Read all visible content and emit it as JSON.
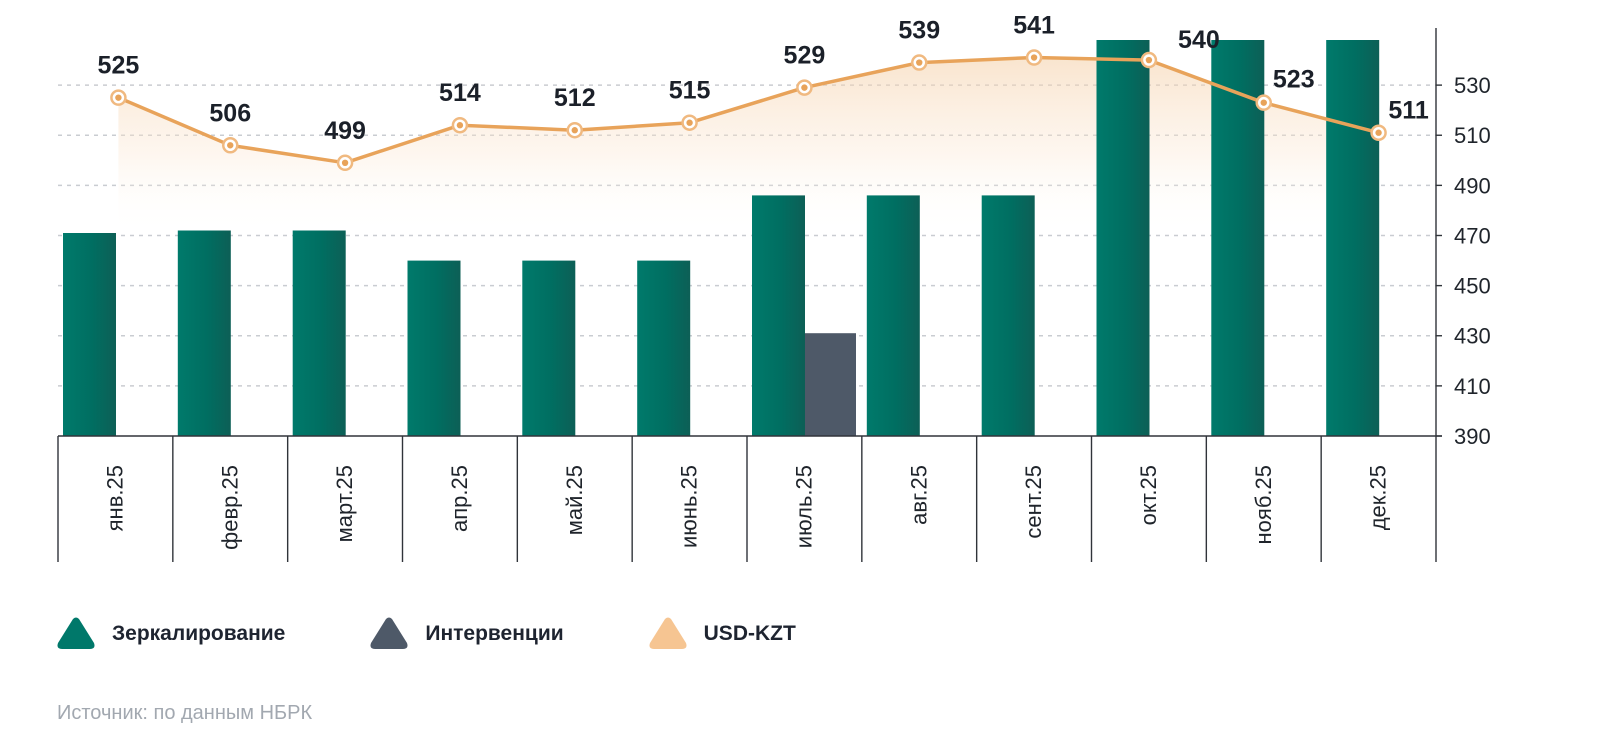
{
  "chart_data": {
    "type": "bar",
    "title": "",
    "categories": [
      "янв.25",
      "февр.25",
      "март.25",
      "апр.25",
      "май.25",
      "июнь.25",
      "июль.25",
      "авг.25",
      "сент.25",
      "окт.25",
      "нояб.25",
      "дек.25"
    ],
    "series": [
      {
        "name": "Зеркалирование",
        "kind": "bar",
        "color": "#00786a",
        "values": [
          471,
          472,
          472,
          460,
          460,
          460,
          486,
          486,
          486,
          548,
          548,
          548
        ]
      },
      {
        "name": "Интервенции",
        "kind": "bar",
        "color": "#4e5968",
        "values": [
          null,
          null,
          null,
          null,
          null,
          null,
          431,
          null,
          null,
          null,
          null,
          null
        ]
      },
      {
        "name": "USD-KZT",
        "kind": "line",
        "color": "#e8a35a",
        "values": [
          525,
          506,
          499,
          514,
          512,
          515,
          529,
          539,
          541,
          540,
          523,
          511
        ]
      }
    ],
    "y_axis": {
      "ticks": [
        390,
        410,
        430,
        450,
        470,
        490,
        510,
        530
      ],
      "ylim": [
        390,
        548
      ],
      "position": "right"
    },
    "grid": true,
    "legend_position": "bottom-left"
  },
  "legend": [
    {
      "label": "Зеркалирование",
      "color": "#00786a"
    },
    {
      "label": "Интервенции",
      "color": "#4e5968"
    },
    {
      "label": "USD-KZT",
      "color": "#f6c592"
    }
  ],
  "source": "Источник: по данным НБРК"
}
